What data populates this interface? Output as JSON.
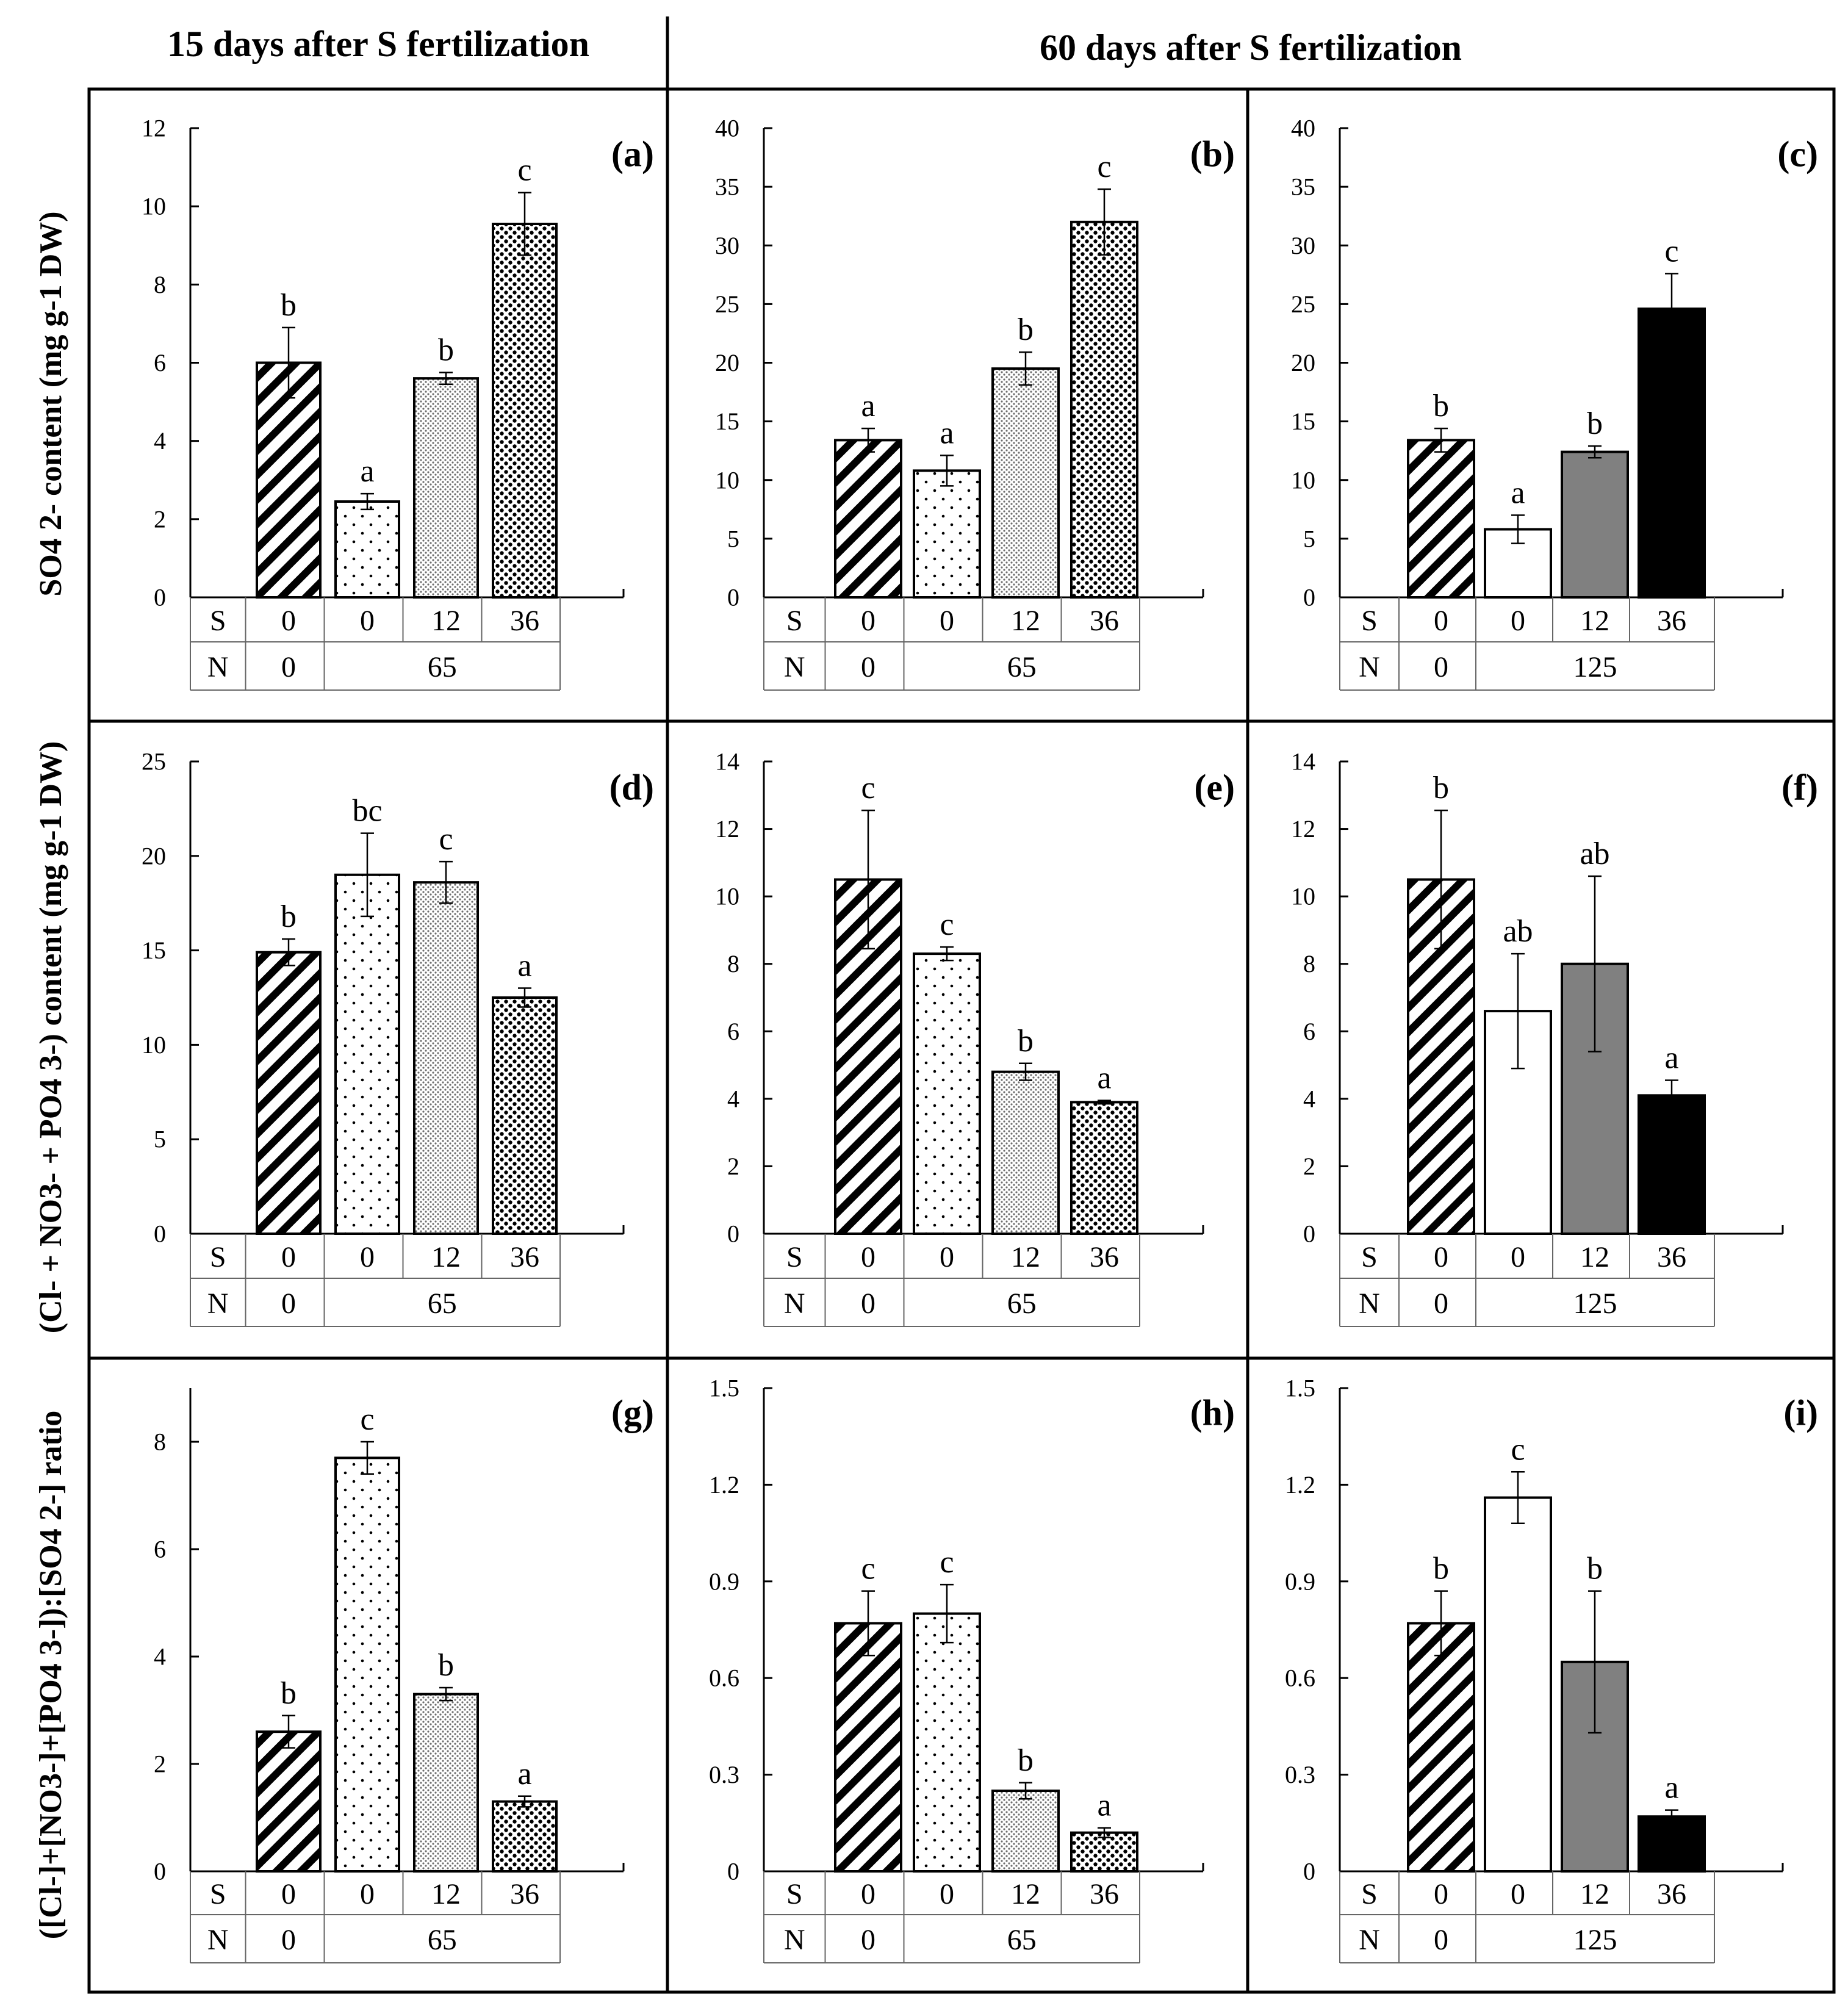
{
  "column_titles": [
    "15 days after S fertilization",
    "60 days after S fertilization"
  ],
  "row_ylabels": [
    "SO4 2- content (mg g-1 DW)",
    "(Cl- + NO3- + PO4 3-) content (mg g-1 DW)",
    "([Cl-]+[NO3-]+[PO4 3-]):[SO4 2-] ratio"
  ],
  "table_row_labels": {
    "s": "S",
    "n": "N"
  },
  "colors": {
    "fill_white": "#ffffff",
    "fill_gray": "#808080",
    "fill_black": "#000000"
  },
  "chart_data": [
    {
      "panel": "(a)",
      "type": "bar",
      "categories": [
        "S0 N0",
        "S0 N65",
        "S12 N65",
        "S36 N65"
      ],
      "ylim": [
        0,
        12
      ],
      "ticks": [
        "0",
        "2",
        "4",
        "6",
        "8",
        "10",
        "12"
      ],
      "values": [
        6.0,
        2.45,
        5.6,
        9.55
      ],
      "errors": [
        0.9,
        0.2,
        0.15,
        0.8
      ],
      "significance": [
        "b",
        "a",
        "b",
        "c"
      ],
      "fills": [
        "hatch",
        "sparse",
        "fine",
        "coarse"
      ],
      "s_row": [
        "0",
        "0",
        "12",
        "36"
      ],
      "n_row": [
        "0",
        "65"
      ]
    },
    {
      "panel": "(b)",
      "type": "bar",
      "categories": [
        "S0 N0",
        "S0 N65",
        "S12 N65",
        "S36 N65"
      ],
      "ylim": [
        0,
        40
      ],
      "ticks": [
        "0",
        "5",
        "10",
        "15",
        "20",
        "25",
        "30",
        "35",
        "40"
      ],
      "values": [
        13.4,
        10.8,
        19.5,
        32.0
      ],
      "errors": [
        1.0,
        1.3,
        1.4,
        2.8
      ],
      "significance": [
        "a",
        "a",
        "b",
        "c"
      ],
      "fills": [
        "hatch",
        "sparse",
        "fine",
        "coarse"
      ],
      "s_row": [
        "0",
        "0",
        "12",
        "36"
      ],
      "n_row": [
        "0",
        "65"
      ]
    },
    {
      "panel": "(c)",
      "type": "bar",
      "categories": [
        "S0 N0",
        "S0 N125",
        "S12 N125",
        "S36 N125"
      ],
      "ylim": [
        0,
        40
      ],
      "ticks": [
        "0",
        "5",
        "10",
        "15",
        "20",
        "25",
        "30",
        "35",
        "40"
      ],
      "values": [
        13.4,
        5.8,
        12.4,
        24.6
      ],
      "errors": [
        1.0,
        1.2,
        0.5,
        3.0
      ],
      "significance": [
        "b",
        "a",
        "b",
        "c"
      ],
      "fills": [
        "hatch",
        "white",
        "gray",
        "black"
      ],
      "s_row": [
        "0",
        "0",
        "12",
        "36"
      ],
      "n_row": [
        "0",
        "125"
      ]
    },
    {
      "panel": "(d)",
      "type": "bar",
      "categories": [
        "S0 N0",
        "S0 N65",
        "S12 N65",
        "S36 N65"
      ],
      "ylim": [
        0,
        25
      ],
      "ticks": [
        "0",
        "5",
        "10",
        "15",
        "20",
        "25"
      ],
      "values": [
        14.9,
        19.0,
        18.6,
        12.5
      ],
      "errors": [
        0.7,
        2.2,
        1.1,
        0.5
      ],
      "significance": [
        "b",
        "bc",
        "c",
        "a"
      ],
      "fills": [
        "hatch",
        "sparse",
        "fine",
        "coarse"
      ],
      "s_row": [
        "0",
        "0",
        "12",
        "36"
      ],
      "n_row": [
        "0",
        "65"
      ]
    },
    {
      "panel": "(e)",
      "type": "bar",
      "categories": [
        "S0 N0",
        "S0 N65",
        "S12 N65",
        "S36 N65"
      ],
      "ylim": [
        0,
        14
      ],
      "ticks": [
        "0",
        "2",
        "4",
        "6",
        "8",
        "10",
        "12",
        "14"
      ],
      "values": [
        10.5,
        8.3,
        4.8,
        3.9
      ],
      "errors": [
        2.05,
        0.2,
        0.25,
        0.05
      ],
      "significance": [
        "c",
        "c",
        "b",
        "a"
      ],
      "fills": [
        "hatch",
        "sparse",
        "fine",
        "coarse"
      ],
      "s_row": [
        "0",
        "0",
        "12",
        "36"
      ],
      "n_row": [
        "0",
        "65"
      ]
    },
    {
      "panel": "(f)",
      "type": "bar",
      "categories": [
        "S0 N0",
        "S0 N125",
        "S12 N125",
        "S36 N125"
      ],
      "ylim": [
        0,
        14
      ],
      "ticks": [
        "0",
        "2",
        "4",
        "6",
        "8",
        "10",
        "12",
        "14"
      ],
      "values": [
        10.5,
        6.6,
        8.0,
        4.1
      ],
      "errors": [
        2.05,
        1.7,
        2.6,
        0.45
      ],
      "significance": [
        "b",
        "ab",
        "ab",
        "a"
      ],
      "fills": [
        "hatch",
        "white",
        "gray",
        "black"
      ],
      "s_row": [
        "0",
        "0",
        "12",
        "36"
      ],
      "n_row": [
        "0",
        "125"
      ]
    },
    {
      "panel": "(g)",
      "type": "bar",
      "categories": [
        "S0 N0",
        "S0 N65",
        "S12 N65",
        "S36 N65"
      ],
      "ylim": [
        0,
        9
      ],
      "ticks": [
        "0",
        "2",
        "4",
        "6",
        "8"
      ],
      "values": [
        2.6,
        7.7,
        3.3,
        1.3
      ],
      "errors": [
        0.3,
        0.3,
        0.12,
        0.1
      ],
      "significance": [
        "b",
        "c",
        "b",
        "a"
      ],
      "fills": [
        "hatch",
        "sparse",
        "fine",
        "coarse"
      ],
      "s_row": [
        "0",
        "0",
        "12",
        "36"
      ],
      "n_row": [
        "0",
        "65"
      ]
    },
    {
      "panel": "(h)",
      "type": "bar",
      "categories": [
        "S0 N0",
        "S0 N65",
        "S12 N65",
        "S36 N65"
      ],
      "ylim": [
        0,
        1.5
      ],
      "ticks": [
        "0",
        "0.3",
        "0.6",
        "0.9",
        "1.2",
        "1.5"
      ],
      "values": [
        0.77,
        0.8,
        0.25,
        0.12
      ],
      "errors": [
        0.1,
        0.09,
        0.025,
        0.015
      ],
      "significance": [
        "c",
        "c",
        "b",
        "a"
      ],
      "fills": [
        "hatch",
        "sparse",
        "fine",
        "coarse"
      ],
      "s_row": [
        "0",
        "0",
        "12",
        "36"
      ],
      "n_row": [
        "0",
        "65"
      ]
    },
    {
      "panel": "(i)",
      "type": "bar",
      "categories": [
        "S0 N0",
        "S0 N125",
        "S12 N125",
        "S36 N125"
      ],
      "ylim": [
        0,
        1.5
      ],
      "ticks": [
        "0",
        "0.3",
        "0.6",
        "0.9",
        "1.2",
        "1.5"
      ],
      "values": [
        0.77,
        1.16,
        0.65,
        0.17
      ],
      "errors": [
        0.1,
        0.08,
        0.22,
        0.02
      ],
      "significance": [
        "b",
        "c",
        "b",
        "a"
      ],
      "fills": [
        "hatch",
        "white",
        "gray",
        "black"
      ],
      "s_row": [
        "0",
        "0",
        "12",
        "36"
      ],
      "n_row": [
        "0",
        "125"
      ]
    }
  ]
}
